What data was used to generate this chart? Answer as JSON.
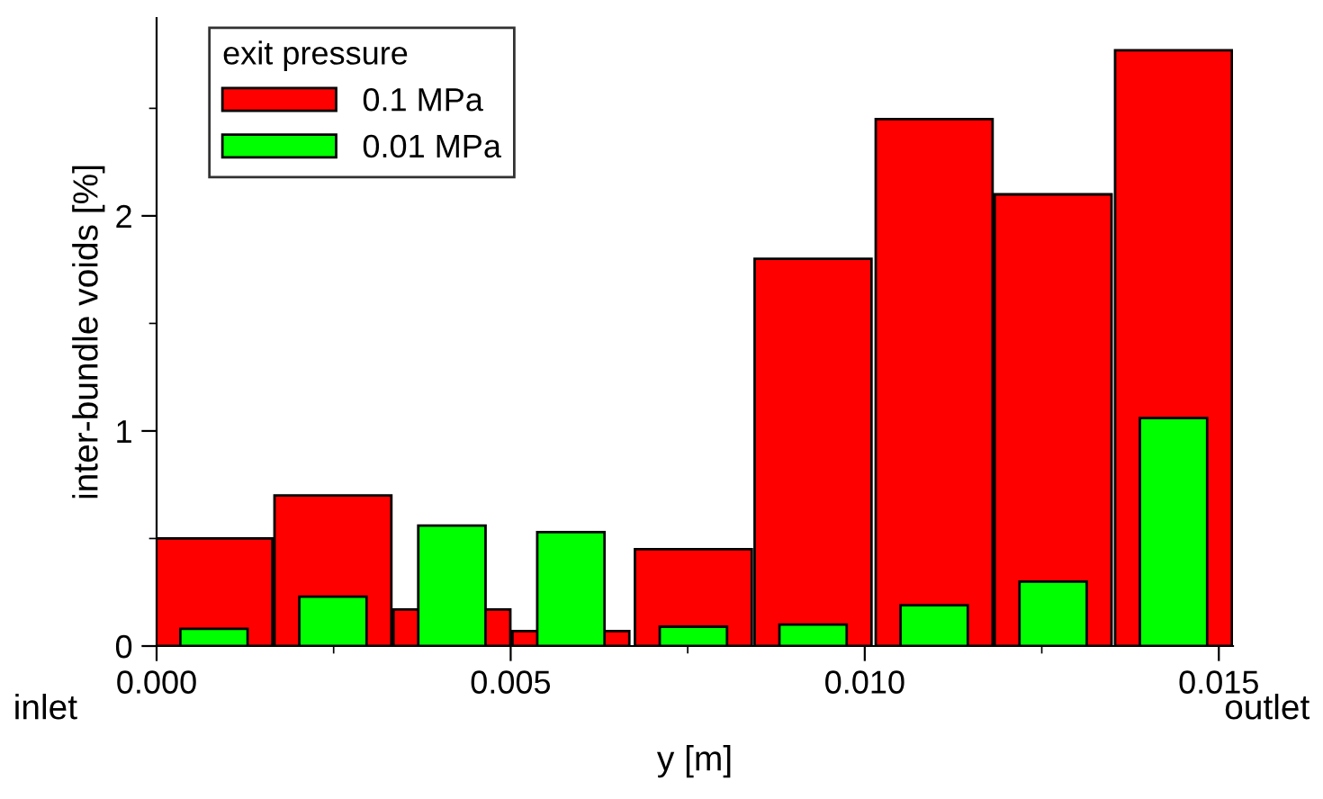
{
  "chart_data": {
    "type": "bar",
    "xlabel": "y [m]",
    "ylabel": "inter-bundle voids [%]",
    "legend_title": "exit pressure",
    "legend": "top left",
    "grid": false,
    "x": [
      0.00081,
      0.00249,
      0.00417,
      0.00585,
      0.00758,
      0.00927,
      0.01098,
      0.01266,
      0.01436
    ],
    "series": [
      {
        "name": "0.1 MPa",
        "color": "#ff0000",
        "values": [
          0.5,
          0.7,
          0.17,
          0.07,
          0.45,
          1.8,
          2.45,
          2.1,
          2.77
        ]
      },
      {
        "name": "0.01 MPa",
        "color": "#00ff00",
        "values": [
          0.08,
          0.23,
          0.56,
          0.53,
          0.09,
          0.1,
          0.19,
          0.3,
          1.06
        ]
      }
    ],
    "xlim": [
      0.0,
      0.0152
    ],
    "xticks": [
      {
        "value": 0,
        "label": "0.000"
      },
      {
        "value": 0.005,
        "label": "0.005"
      },
      {
        "value": 0.01,
        "label": "0.010"
      },
      {
        "value": 0.015,
        "label": "0.015"
      }
    ],
    "ylim": [
      0,
      2.92
    ],
    "yticks": [
      0,
      1,
      2
    ],
    "annotations": [
      "inlet",
      "outlet"
    ]
  }
}
